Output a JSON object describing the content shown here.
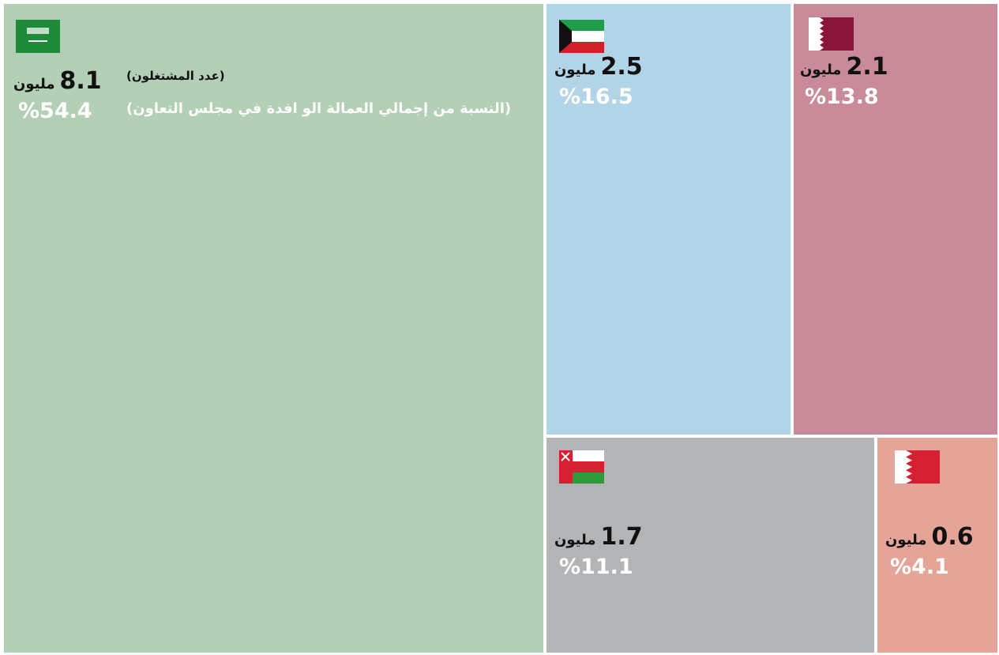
{
  "chart_data": {
    "type": "treemap",
    "unit": "مليون",
    "annotations": [
      "(عدد المشتغلون)",
      "(النسبة من إجمالي العمالة الو افدة في مجلس التعاون)"
    ],
    "values": [
      8.1,
      2.5,
      2.1,
      1.7,
      0.6
    ],
    "shares": [
      54.4,
      16.5,
      13.8,
      11.1,
      4.1
    ],
    "share_labels": [
      "%54.4",
      "%16.5",
      "%13.8",
      "%11.1",
      "%4.1"
    ],
    "colors": [
      "#b3cfb5",
      "#b1d4e6",
      "#c98a99",
      "#b3b4b6",
      "#e4a598"
    ]
  }
}
